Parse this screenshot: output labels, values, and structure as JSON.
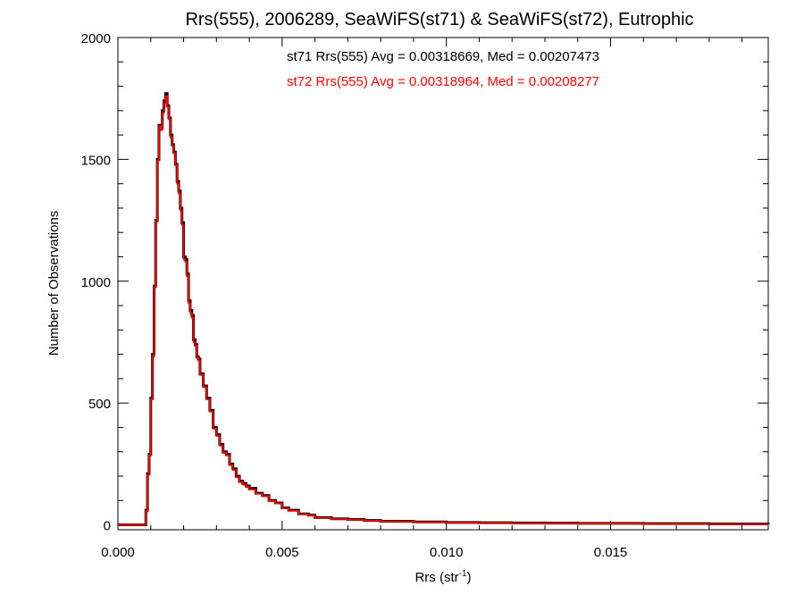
{
  "chart_data": {
    "type": "line",
    "title": "Rrs(555), 2006289, SeaWiFS(st71) & SeaWiFS(st72), Eutrophic",
    "xlabel": "Rrs (str",
    "xlabel_sup": "-1",
    "xlabel_suffix": ")",
    "ylabel": "Number of Observations",
    "xlim": [
      0.0,
      0.0198
    ],
    "ylim": [
      -20,
      2000
    ],
    "xticks": [
      0.0,
      0.005,
      0.01,
      0.015
    ],
    "xtick_labels": [
      "0.000",
      "0.005",
      "0.010",
      "0.015"
    ],
    "yticks": [
      0,
      500,
      1000,
      1500,
      2000
    ],
    "ytick_labels": [
      "0",
      "500",
      "1000",
      "1500",
      "2000"
    ],
    "grid": false,
    "annotations": [
      {
        "text": "st71 Rrs(555) Avg = 0.00318669, Med = 0.00207473",
        "color": "#000000"
      },
      {
        "text": "st72 Rrs(555) Avg = 0.00318964, Med = 0.00208277",
        "color": "#ff0000"
      }
    ],
    "series": [
      {
        "color": "#000000",
        "x": [
          0.0,
          0.0005,
          0.0008,
          0.00085,
          0.0009,
          0.00095,
          0.001,
          0.00105,
          0.0011,
          0.00115,
          0.0012,
          0.00125,
          0.0013,
          0.00135,
          0.0014,
          0.00145,
          0.0015,
          0.00155,
          0.0016,
          0.00165,
          0.0017,
          0.00175,
          0.0018,
          0.00185,
          0.0019,
          0.00195,
          0.002,
          0.00205,
          0.0021,
          0.00215,
          0.0022,
          0.00225,
          0.0023,
          0.00235,
          0.0024,
          0.00245,
          0.0025,
          0.0026,
          0.0027,
          0.0028,
          0.0029,
          0.003,
          0.0031,
          0.0032,
          0.0033,
          0.0034,
          0.0035,
          0.0036,
          0.0037,
          0.0038,
          0.0039,
          0.004,
          0.0042,
          0.0044,
          0.0046,
          0.0048,
          0.005,
          0.0052,
          0.0055,
          0.0058,
          0.006,
          0.0065,
          0.007,
          0.0075,
          0.008,
          0.009,
          0.01,
          0.011,
          0.012,
          0.013,
          0.014,
          0.015,
          0.016,
          0.017,
          0.018,
          0.019,
          0.0198
        ],
        "values": [
          0,
          0,
          0,
          60,
          210,
          290,
          520,
          700,
          980,
          1250,
          1500,
          1640,
          1630,
          1700,
          1740,
          1770,
          1720,
          1670,
          1600,
          1560,
          1530,
          1480,
          1410,
          1370,
          1300,
          1240,
          1100,
          1090,
          1030,
          920,
          880,
          860,
          760,
          740,
          690,
          680,
          620,
          570,
          520,
          470,
          400,
          370,
          330,
          300,
          290,
          250,
          230,
          200,
          180,
          170,
          160,
          150,
          130,
          120,
          100,
          90,
          70,
          60,
          45,
          40,
          30,
          25,
          22,
          18,
          15,
          12,
          10,
          9,
          8,
          7,
          6,
          6,
          5,
          5,
          4,
          4,
          3
        ]
      },
      {
        "color": "#ff0000",
        "x": [
          0.0,
          0.0005,
          0.0008,
          0.00085,
          0.0009,
          0.00095,
          0.001,
          0.00105,
          0.0011,
          0.00115,
          0.0012,
          0.00125,
          0.0013,
          0.00135,
          0.0014,
          0.00145,
          0.0015,
          0.00155,
          0.0016,
          0.00165,
          0.0017,
          0.00175,
          0.0018,
          0.00185,
          0.0019,
          0.00195,
          0.002,
          0.00205,
          0.0021,
          0.00215,
          0.0022,
          0.00225,
          0.0023,
          0.00235,
          0.0024,
          0.00245,
          0.0025,
          0.0026,
          0.0027,
          0.0028,
          0.0029,
          0.003,
          0.0031,
          0.0032,
          0.0033,
          0.0034,
          0.0035,
          0.0036,
          0.0037,
          0.0038,
          0.0039,
          0.004,
          0.0042,
          0.0044,
          0.0046,
          0.0048,
          0.005,
          0.0052,
          0.0055,
          0.0058,
          0.006,
          0.0065,
          0.007,
          0.0075,
          0.008,
          0.009,
          0.01,
          0.011,
          0.012,
          0.013,
          0.014,
          0.015,
          0.016,
          0.017,
          0.018,
          0.019,
          0.0198
        ],
        "values": [
          0,
          0,
          0,
          55,
          205,
          285,
          515,
          690,
          975,
          1245,
          1495,
          1635,
          1620,
          1690,
          1730,
          1760,
          1715,
          1665,
          1590,
          1555,
          1525,
          1475,
          1400,
          1360,
          1290,
          1230,
          1090,
          1080,
          1020,
          910,
          870,
          850,
          750,
          735,
          685,
          675,
          615,
          565,
          515,
          465,
          395,
          365,
          325,
          295,
          285,
          245,
          225,
          195,
          175,
          165,
          155,
          145,
          128,
          118,
          98,
          88,
          68,
          58,
          44,
          39,
          29,
          24,
          21,
          17,
          14,
          11,
          9,
          8,
          7,
          6,
          5,
          5,
          4,
          4,
          3,
          3,
          2
        ]
      }
    ]
  }
}
